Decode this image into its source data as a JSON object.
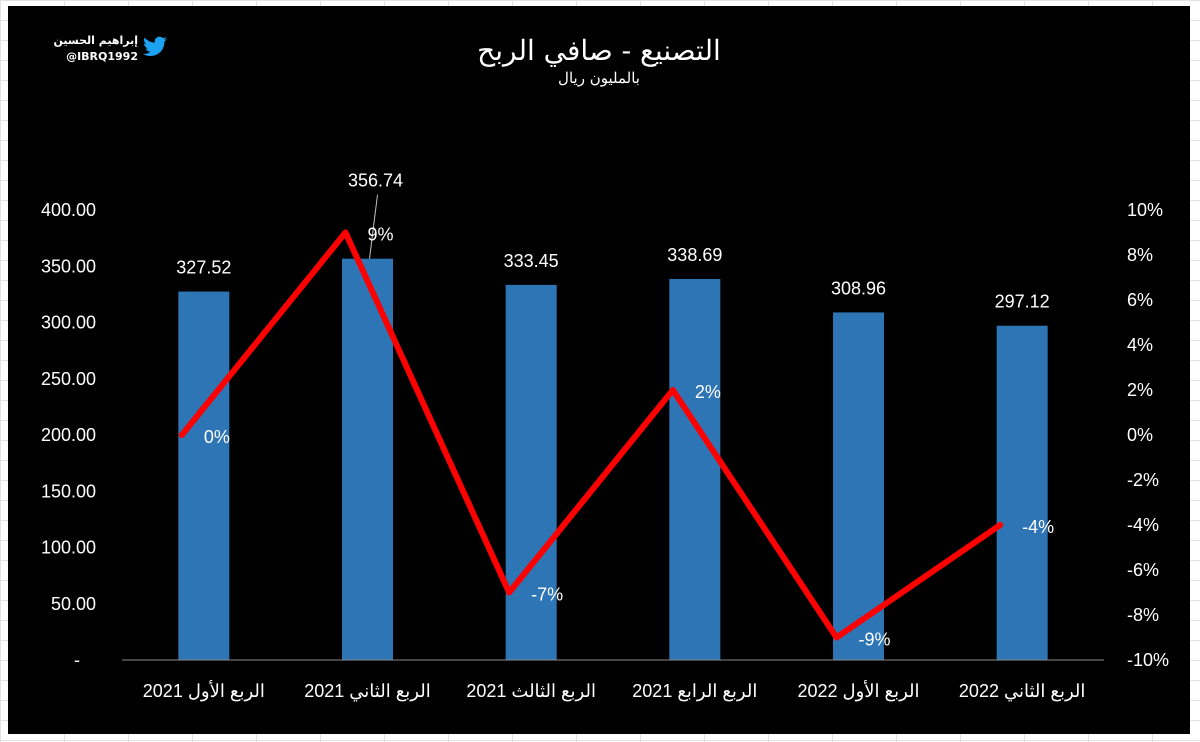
{
  "brand": {
    "name": "إبراهيم الحسين",
    "handle": "@IBRQ1992",
    "icon": "twitter-bird-icon",
    "icon_color": "#1DA1F2"
  },
  "chart_data": {
    "type": "bar",
    "title": "التصنيع - صافي الربح",
    "subtitle": "بالمليون ريال",
    "categories": [
      "الربع الأول 2021",
      "الربع الثاني 2021",
      "الربع الثالث 2021",
      "الربع الرابع 2021",
      "الربع الأول 2022",
      "الربع الثاني 2022"
    ],
    "series": [
      {
        "type": "bar",
        "axis": "left",
        "color": "#2E75B6",
        "values": [
          327.52,
          356.74,
          333.45,
          338.69,
          308.96,
          297.12
        ],
        "labels": [
          "327.52",
          "356.74",
          "333.45",
          "338.69",
          "308.96",
          "297.12"
        ]
      },
      {
        "type": "line",
        "axis": "right",
        "color": "#FF0000",
        "values": [
          0,
          9,
          -7,
          2,
          -9,
          -4
        ],
        "labels": [
          "0%",
          "9%",
          "-7%",
          "2%",
          "-9%",
          "-4%"
        ]
      }
    ],
    "y_left": {
      "min": 0,
      "max": 400,
      "ticks": [
        "-",
        "50.00",
        "100.00",
        "150.00",
        "200.00",
        "250.00",
        "300.00",
        "350.00",
        "400.00"
      ]
    },
    "y_right": {
      "min": -10,
      "max": 10,
      "ticks": [
        "-10%",
        "-8%",
        "-6%",
        "-4%",
        "-2%",
        "0%",
        "2%",
        "4%",
        "6%",
        "8%",
        "10%"
      ]
    },
    "background": "#000000",
    "grid": false
  }
}
